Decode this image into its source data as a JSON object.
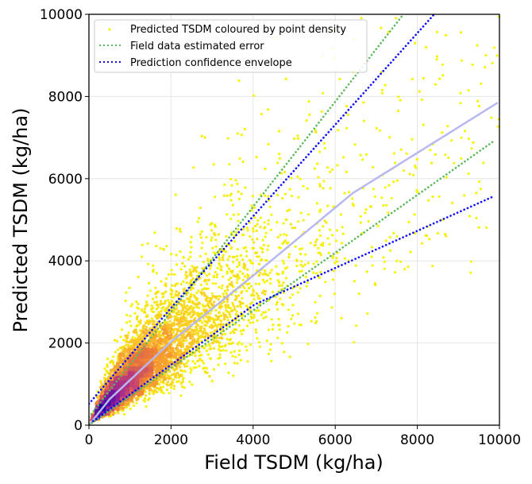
{
  "chart_data": {
    "type": "scatter",
    "xlabel": "Field TSDM (kg/ha)",
    "ylabel": "Predicted TSDM (kg/ha)",
    "xlim": [
      0,
      10000
    ],
    "ylim": [
      0,
      10000
    ],
    "xticks": [
      "0",
      "2000",
      "4000",
      "6000",
      "8000",
      "10000"
    ],
    "yticks": [
      "0",
      "2000",
      "4000",
      "6000",
      "8000",
      "10000"
    ],
    "grid": true,
    "legend_position": "top-left",
    "colors": {
      "low_density": "#f5f500",
      "mid_density": "#f08a2c",
      "high_density": "#8a1aa0",
      "peak_density": "#1a0a9a",
      "field_error": "#5cb85c",
      "confidence": "#0a0aff",
      "fit": "#b8b8f0"
    },
    "series": [
      {
        "name": "Predicted TSDM coloured by point density",
        "kind": "scatter",
        "color_by": "point density",
        "colormap": "plasma (reversed)"
      },
      {
        "name": "Field data estimated error",
        "kind": "dotted-line",
        "color": "#5cb85c",
        "upper": [
          [
            0,
            200
          ],
          [
            2190,
            3000
          ],
          [
            7660,
            10000
          ]
        ],
        "lower": [
          [
            0,
            0
          ],
          [
            4100,
            2860
          ],
          [
            9900,
            6940
          ]
        ]
      },
      {
        "name": "Prediction confidence envelope",
        "kind": "dotted-line",
        "color": "#0a0aff",
        "upper": [
          [
            0,
            520
          ],
          [
            2040,
            2900
          ],
          [
            8410,
            10000
          ]
        ],
        "lower": [
          [
            100,
            100
          ],
          [
            4040,
            2940
          ],
          [
            9860,
            5570
          ]
        ]
      },
      {
        "kind": "fit-line",
        "color": "#b8b8f0",
        "points": [
          [
            0,
            0
          ],
          [
            500,
            630
          ],
          [
            2000,
            2030
          ],
          [
            4000,
            3640
          ],
          [
            6430,
            5650
          ],
          [
            9960,
            7850
          ]
        ]
      }
    ]
  }
}
